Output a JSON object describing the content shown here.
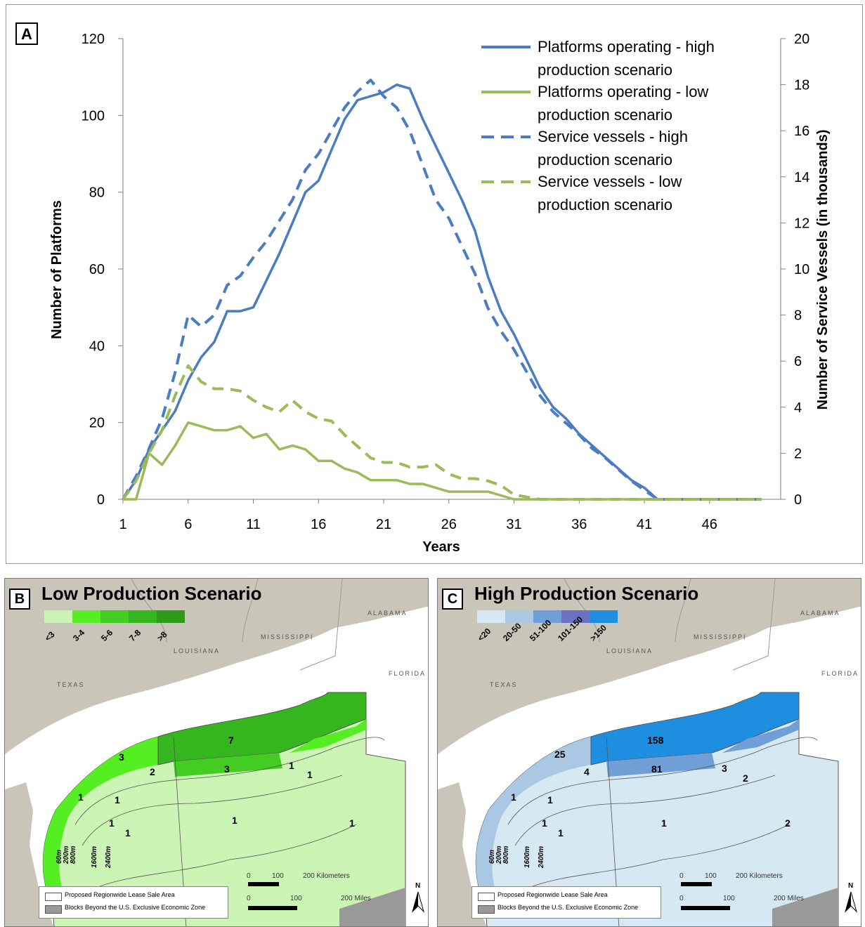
{
  "panel_a": {
    "letter": "A",
    "xlabel": "Years",
    "ylabel_left": "Number of Platforms",
    "ylabel_right": "Number of Service Vessels (in thousands)"
  },
  "chart_data": {
    "type": "line",
    "xlabel": "Years",
    "ylabel": "Number of Platforms",
    "y2label": "Number of Service Vessels (in thousands)",
    "xlim": [
      1,
      50
    ],
    "ylim": [
      0,
      120
    ],
    "y2lim": [
      0,
      20
    ],
    "xticks": [
      1,
      6,
      11,
      16,
      21,
      26,
      31,
      36,
      41,
      46
    ],
    "yticks": [
      0,
      20,
      40,
      60,
      80,
      100,
      120
    ],
    "y2ticks": [
      0,
      2,
      4,
      6,
      8,
      10,
      12,
      14,
      16,
      18,
      20
    ],
    "legend": "top-right",
    "series": [
      {
        "name": "Platforms operating - high production scenario",
        "axis": "left",
        "color": "#4a7cc2",
        "dash": false,
        "x": [
          1,
          2,
          3,
          4,
          5,
          6,
          7,
          8,
          9,
          10,
          11,
          12,
          13,
          14,
          15,
          16,
          17,
          18,
          19,
          20,
          21,
          22,
          23,
          24,
          25,
          26,
          27,
          28,
          29,
          30,
          31,
          32,
          33,
          34,
          35,
          36,
          37,
          38,
          39,
          40,
          41,
          42,
          43,
          44,
          45,
          46,
          47,
          48,
          49,
          50
        ],
        "y": [
          0,
          5,
          13,
          18,
          23,
          31,
          37,
          41,
          49,
          49,
          50,
          57,
          64,
          72,
          80,
          83,
          91,
          99,
          104,
          105,
          106,
          108,
          107,
          99,
          92,
          85,
          78,
          70,
          58,
          49,
          43,
          36,
          29,
          24,
          21,
          17,
          14,
          11,
          8,
          5,
          3,
          0,
          0,
          0,
          0,
          0,
          0,
          0,
          0,
          0
        ]
      },
      {
        "name": "Platforms operating - low production scenario",
        "axis": "left",
        "color": "#9bbb59",
        "dash": false,
        "x": [
          1,
          2,
          3,
          4,
          5,
          6,
          7,
          8,
          9,
          10,
          11,
          12,
          13,
          14,
          15,
          16,
          17,
          18,
          19,
          20,
          21,
          22,
          23,
          24,
          25,
          26,
          27,
          28,
          29,
          30,
          31,
          32,
          33,
          34,
          35,
          36,
          37,
          38,
          39,
          40,
          41,
          42,
          43,
          44,
          45,
          46,
          47,
          48,
          49,
          50
        ],
        "y": [
          0,
          0,
          12,
          9,
          14,
          20,
          19,
          18,
          18,
          19,
          16,
          17,
          13,
          14,
          13,
          10,
          10,
          8,
          7,
          5,
          5,
          5,
          4,
          4,
          3,
          2,
          2,
          2,
          2,
          1,
          0,
          0,
          0,
          0,
          0,
          0,
          0,
          0,
          0,
          0,
          0,
          0,
          0,
          0,
          0,
          0,
          0,
          0,
          0,
          0
        ]
      },
      {
        "name": "Service vessels - high production scenario",
        "axis": "right",
        "color": "#4a7cc2",
        "dash": true,
        "x": [
          1,
          2,
          3,
          4,
          5,
          6,
          7,
          8,
          9,
          10,
          11,
          12,
          13,
          14,
          15,
          16,
          17,
          18,
          19,
          20,
          21,
          22,
          23,
          24,
          25,
          26,
          27,
          28,
          29,
          30,
          31,
          32,
          33,
          34,
          35,
          36,
          37,
          38,
          39,
          40,
          41,
          42,
          43,
          44,
          45,
          46,
          47,
          48,
          49,
          50
        ],
        "y": [
          0,
          1.0,
          2.2,
          3.5,
          5.5,
          8.0,
          7.5,
          8.0,
          9.3,
          9.7,
          10.5,
          11.2,
          12.1,
          13.0,
          14.3,
          15.0,
          16.0,
          17.0,
          17.7,
          18.2,
          17.5,
          17.0,
          16.0,
          14.5,
          13.0,
          12.2,
          11.0,
          9.8,
          8.3,
          7.3,
          6.5,
          5.5,
          4.5,
          3.8,
          3.3,
          2.8,
          2.2,
          1.8,
          1.3,
          0.8,
          0.4,
          0,
          0,
          0,
          0,
          0,
          0,
          0,
          0,
          0
        ]
      },
      {
        "name": "Service vessels - low production scenario",
        "axis": "right",
        "color": "#9bbb59",
        "dash": true,
        "x": [
          1,
          2,
          3,
          4,
          5,
          6,
          7,
          8,
          9,
          10,
          11,
          12,
          13,
          14,
          15,
          16,
          17,
          18,
          19,
          20,
          21,
          22,
          23,
          24,
          25,
          26,
          27,
          28,
          29,
          30,
          31,
          32,
          33,
          34,
          35,
          36,
          37,
          38,
          39,
          40,
          41,
          42,
          43,
          44,
          45,
          46,
          47,
          48,
          49,
          50
        ],
        "y": [
          0,
          0.8,
          2.0,
          3.0,
          4.5,
          5.8,
          5.1,
          4.8,
          4.8,
          4.7,
          4.3,
          4.0,
          3.8,
          4.3,
          3.8,
          3.5,
          3.4,
          2.8,
          2.3,
          1.8,
          1.6,
          1.6,
          1.4,
          1.4,
          1.5,
          1.1,
          0.9,
          0.9,
          0.8,
          0.6,
          0.2,
          0.1,
          0,
          0,
          0,
          0,
          0,
          0,
          0,
          0,
          0,
          0,
          0,
          0,
          0,
          0,
          0,
          0,
          0,
          0
        ]
      }
    ]
  },
  "legend_entries": [
    {
      "line1": "Platforms operating - high",
      "line2": "production scenario"
    },
    {
      "line1": "Platforms operating - low",
      "line2": "production scenario"
    },
    {
      "line1": "Service vessels - high",
      "line2": "production scenario"
    },
    {
      "line1": "Service vessels - low",
      "line2": "production scenario"
    }
  ],
  "panel_b": {
    "letter": "B",
    "title": "Low Production Scenario",
    "legend": [
      {
        "label": "<3",
        "color": "#ccf5b5"
      },
      {
        "label": "3-4",
        "color": "#55ee22"
      },
      {
        "label": "5-6",
        "color": "#44cc22"
      },
      {
        "label": "7-8",
        "color": "#35b51e"
      },
      {
        "label": ">8",
        "color": "#2f9a1a"
      }
    ],
    "values": [
      "3",
      "7",
      "2",
      "3",
      "1",
      "1",
      "1",
      "1",
      "1",
      "1",
      "1",
      "1"
    ]
  },
  "panel_c": {
    "letter": "C",
    "title": "High Production Scenario",
    "legend": [
      {
        "label": "<20",
        "color": "#d6e8f2"
      },
      {
        "label": "20-50",
        "color": "#a9c8e4"
      },
      {
        "label": "51-100",
        "color": "#6f9fd6"
      },
      {
        "label": "101-150",
        "color": "#6a72c4"
      },
      {
        "label": ">150",
        "color": "#1e8fe0"
      }
    ],
    "values": [
      "25",
      "158",
      "4",
      "81",
      "3",
      "2",
      "1",
      "1",
      "1",
      "1",
      "2",
      "1"
    ]
  },
  "map_common": {
    "states": {
      "texas": "TEXAS",
      "louisiana": "LOUISIANA",
      "mississippi": "MISSISSIPPI",
      "alabama": "ALABAMA",
      "florida": "FLORIDA"
    },
    "depths": [
      "60m",
      "200m",
      "800m",
      "1600m",
      "2400m"
    ],
    "key_lease": "Proposed Regionwide Lease Sale Area",
    "key_eez": "Blocks Beyond the U.S. Exclusive Economic Zone",
    "scale_km": [
      "0",
      "100",
      "200 Kilometers"
    ],
    "scale_mi": [
      "0",
      "100",
      "200 Miles"
    ],
    "north": "N",
    "colors": {
      "land": "#c9c6b9",
      "water": "#ffffff",
      "eez": "#999999"
    }
  }
}
